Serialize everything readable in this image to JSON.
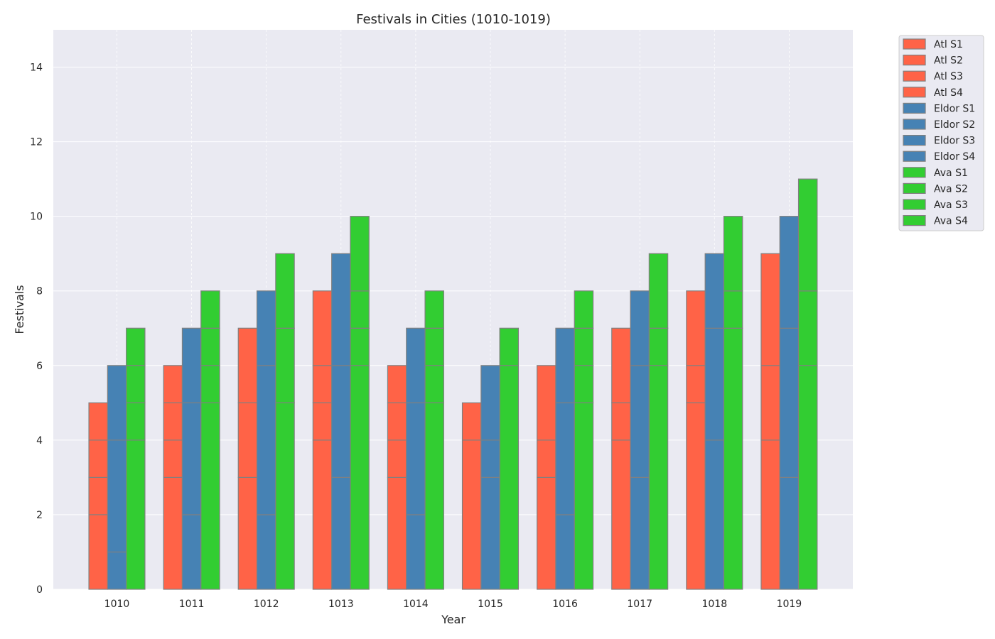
{
  "chart_data": {
    "type": "bar",
    "title": "Festivals in Cities (1010-1019)",
    "xlabel": "Year",
    "ylabel": "Festivals",
    "categories": [
      "1010",
      "1011",
      "1012",
      "1013",
      "1014",
      "1015",
      "1016",
      "1017",
      "1018",
      "1019"
    ],
    "ylim": [
      0,
      15
    ],
    "yticks": [
      0,
      2,
      4,
      6,
      8,
      10,
      12,
      14
    ],
    "grid": true,
    "legend_position": "outside-top-right",
    "background_color": "#eaeaf2",
    "edge_color": "#808080",
    "groups": [
      {
        "name": "Atl",
        "color": "#ff6347",
        "segments": [
          {
            "name": "Atl S1",
            "values": [
              2,
              3,
              3,
              4,
              3,
              4,
              3,
              4,
              5,
              4
            ]
          },
          {
            "name": "Atl S2",
            "values": [
              1,
              1,
              2,
              1,
              1,
              0,
              1,
              1,
              1,
              2
            ]
          },
          {
            "name": "Atl S3",
            "values": [
              1,
              1,
              2,
              1,
              1,
              1,
              2,
              2,
              2,
              3
            ]
          },
          {
            "name": "Atl S4",
            "values": [
              1,
              1,
              0,
              2,
              1,
              0,
              0,
              0,
              0,
              0
            ]
          }
        ]
      },
      {
        "name": "Eldor",
        "color": "#4682b4",
        "segments": [
          {
            "name": "Eldor S1",
            "values": [
              1,
              2,
              2,
              3,
              2,
              3,
              2,
              3,
              4,
              3
            ]
          },
          {
            "name": "Eldor S2",
            "values": [
              3,
              3,
              4,
              3,
              3,
              1,
              3,
              3,
              3,
              4
            ]
          },
          {
            "name": "Eldor S3",
            "values": [
              2,
              2,
              2,
              3,
              2,
              2,
              2,
              2,
              2,
              3
            ]
          },
          {
            "name": "Eldor S4",
            "values": [
              0,
              0,
              0,
              0,
              0,
              0,
              0,
              0,
              0,
              0
            ]
          }
        ]
      },
      {
        "name": "Ava",
        "color": "#32cd32",
        "segments": [
          {
            "name": "Ava S1",
            "values": [
              4,
              5,
              5,
              6,
              5,
              6,
              5,
              6,
              7,
              6
            ]
          },
          {
            "name": "Ava S2",
            "values": [
              1,
              1,
              2,
              1,
              1,
              0,
              1,
              1,
              1,
              2
            ]
          },
          {
            "name": "Ava S3",
            "values": [
              1,
              1,
              0,
              1,
              1,
              0,
              1,
              0,
              0,
              0
            ]
          },
          {
            "name": "Ava S4",
            "values": [
              1,
              1,
              2,
              2,
              1,
              1,
              1,
              2,
              2,
              3
            ]
          }
        ]
      }
    ]
  }
}
